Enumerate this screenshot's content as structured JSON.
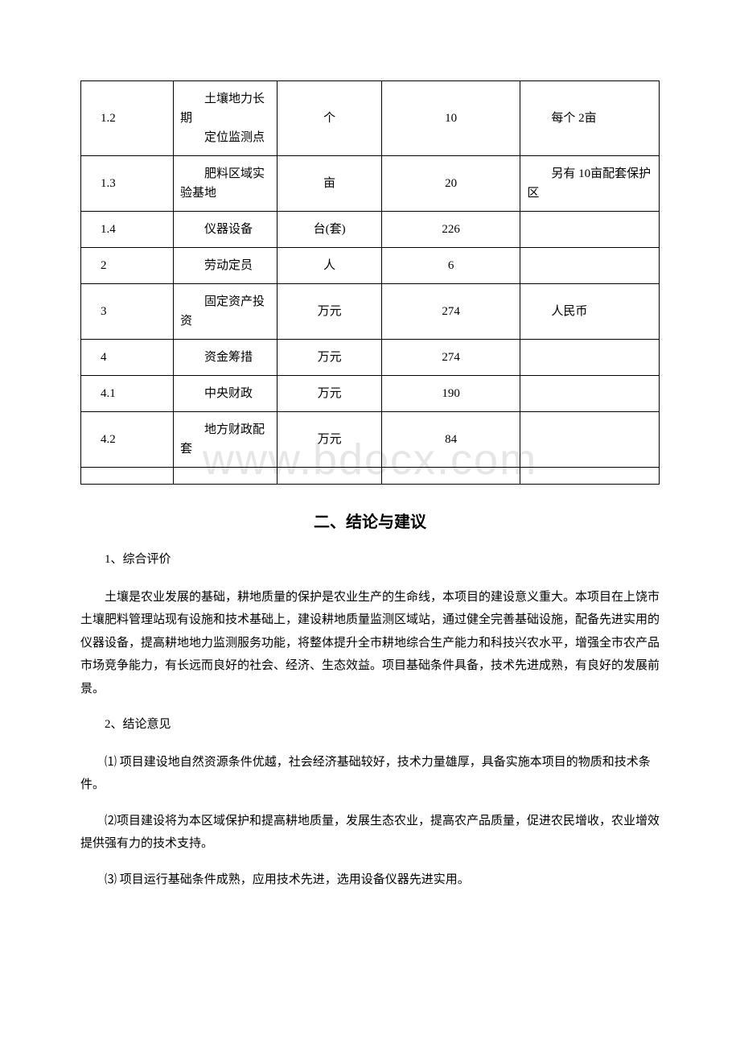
{
  "watermark": "www.bdocx.com",
  "table": {
    "columns": [
      "id",
      "name",
      "unit",
      "value",
      "note"
    ],
    "rows": [
      {
        "id": "1.2",
        "name": "土壤地力长期\n定位监测点",
        "unit": "个",
        "value": "10",
        "note": "每个 2亩"
      },
      {
        "id": "1.3",
        "name": "肥料区域实验基地",
        "unit": "亩",
        "value": "20",
        "note": "另有 10亩配套保护区"
      },
      {
        "id": "1.4",
        "name": "仪器设备",
        "unit": "台(套)",
        "value": "226",
        "note": ""
      },
      {
        "id": "2",
        "name": "劳动定员",
        "unit": "人",
        "value": "6",
        "note": ""
      },
      {
        "id": "3",
        "name": "固定资产投资",
        "unit": "万元",
        "value": "274",
        "note": "人民币"
      },
      {
        "id": "4",
        "name": "资金筹措",
        "unit": "万元",
        "value": "274",
        "note": ""
      },
      {
        "id": "4.1",
        "name": "中央财政",
        "unit": "万元",
        "value": "190",
        "note": ""
      },
      {
        "id": "4.2",
        "name": "地方财政配套",
        "unit": "万元",
        "value": "84",
        "note": ""
      },
      {
        "id": "",
        "name": "",
        "unit": "",
        "value": "",
        "note": ""
      }
    ],
    "border_color": "#000000",
    "cell_fontsize": 15
  },
  "section": {
    "title": "二、结论与建议",
    "paragraphs": {
      "p1": "1、综合评价",
      "p2": "土壤是农业发展的基础，耕地质量的保护是农业生产的生命线，本项目的建设意义重大。本项目在上饶市土壤肥料管理站现有设施和技术基础上，建设耕地质量监测区域站，通过健全完善基础设施，配备先进实用的仪器设备，提高耕地地力监测服务功能，将整体提升全市耕地综合生产能力和科技兴农水平，增强全市农产品市场竞争能力，有长远而良好的社会、经济、生态效益。项目基础条件具备，技术先进成熟，有良好的发展前景。",
      "p3": "2、结论意见",
      "p4": "⑴ 项目建设地自然资源条件优越，社会经济基础较好，技术力量雄厚，具备实施本项目的物质和技术条件。",
      "p5": "⑵项目建设将为本区域保护和提高耕地质量，发展生态农业，提高农产品质量，促进农民增收，农业增效提供强有力的技术支持。",
      "p6": "⑶ 项目运行基础条件成熟，应用技术先进，选用设备仪器先进实用。"
    }
  },
  "colors": {
    "background": "#ffffff",
    "text": "#000000",
    "watermark": "#e6e6e6",
    "border": "#000000"
  },
  "typography": {
    "body_font": "SimSun",
    "heading_font": "SimHei",
    "body_fontsize": 15,
    "heading_fontsize": 20
  }
}
